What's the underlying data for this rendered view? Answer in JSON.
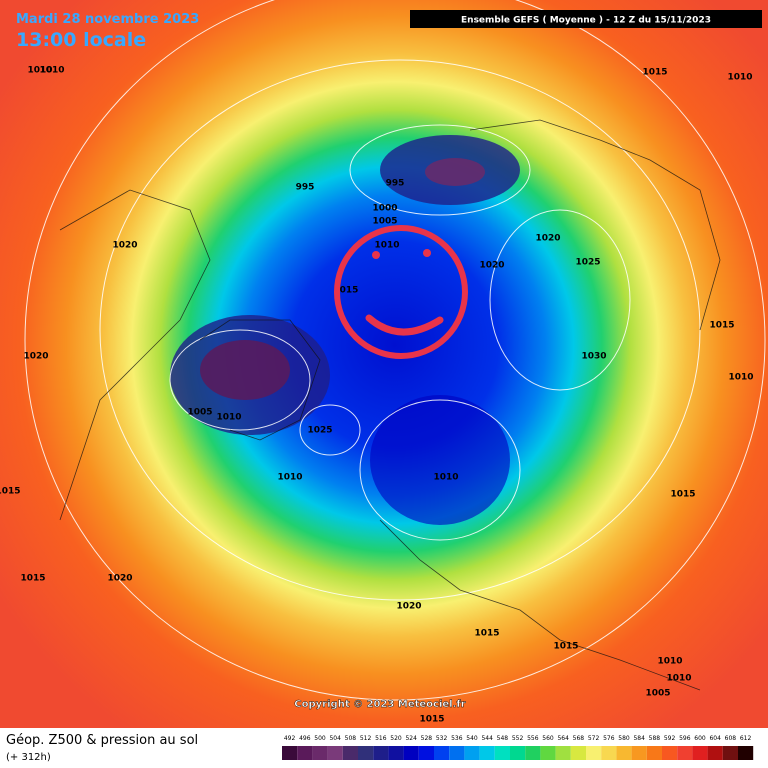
{
  "header": {
    "date": "Mardi 28 novembre 2023",
    "time": "13:00 locale",
    "run": "Ensemble GEFS  ( Moyenne )  -  12 Z du 15/11/2023"
  },
  "copyright": "Copyright © 2023 Meteociel.fr",
  "footer": {
    "title": "Géop. Z500 & pression au sol",
    "lead": "(+ 312h)"
  },
  "isobar_labels": [
    "1010",
    "1015",
    "1010",
    "995",
    "995",
    "1000",
    "1005",
    "1010",
    "1020",
    "1020",
    "1025",
    "1020",
    "015",
    "1015",
    "1030",
    "1020",
    "1010",
    "1005",
    "1010",
    "1025",
    "1010",
    "1010",
    "1015",
    "1015",
    "1015",
    "1020",
    "1020",
    "1015",
    "1015",
    "1010",
    "1010",
    "1005",
    "1015",
    "1010"
  ],
  "scale": {
    "values": [
      492,
      496,
      500,
      504,
      508,
      512,
      516,
      520,
      524,
      528,
      532,
      536,
      540,
      544,
      548,
      552,
      556,
      560,
      564,
      568,
      572,
      576,
      580,
      584,
      588,
      592,
      596,
      600,
      604,
      608,
      612
    ],
    "colors": [
      "#3a0a3a",
      "#5a1a5a",
      "#6a2a6a",
      "#7a3a7a",
      "#4a2a6a",
      "#30307a",
      "#1e1e8a",
      "#1010a0",
      "#0000c0",
      "#0010e0",
      "#0040f0",
      "#0070f0",
      "#00a0f0",
      "#00c8e8",
      "#00e0c0",
      "#00d890",
      "#20d060",
      "#60d840",
      "#a0e040",
      "#d8e840",
      "#f8f070",
      "#f8d850",
      "#f8b830",
      "#f89820",
      "#f87818",
      "#f85820",
      "#f04030",
      "#e02020",
      "#b01010",
      "#701010",
      "#200000"
    ]
  }
}
